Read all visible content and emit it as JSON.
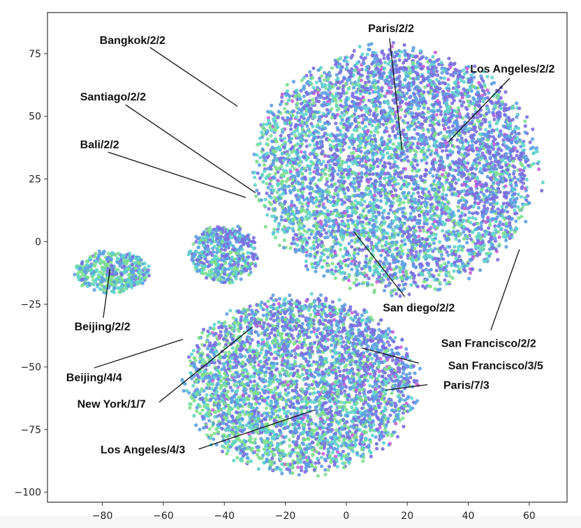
{
  "chart_data": {
    "type": "scatter",
    "title": "",
    "xlabel": "",
    "ylabel": "",
    "xlim": [
      -98,
      72.4
    ],
    "ylim": [
      -104,
      91.4
    ],
    "grid": false,
    "legend": "none",
    "x_ticks": [
      -80,
      -60,
      -40,
      -20,
      0,
      20,
      40,
      60
    ],
    "y_ticks": [
      75,
      50,
      25,
      0,
      -25,
      -50,
      -75,
      -100
    ],
    "x_tick_labels": [
      "−80",
      "−60",
      "−40",
      "−20",
      "0",
      "20",
      "40",
      "60"
    ],
    "y_tick_labels": [
      "75",
      "50",
      "25",
      "0",
      "−25",
      "−50",
      "−75",
      "−100"
    ],
    "palette": [
      "#7a6fe0",
      "#5d9fe3",
      "#5fd4cc",
      "#80df8c",
      "#c563d6"
    ],
    "clusters": [
      {
        "name": "main",
        "center": [
          16,
          29
        ],
        "spread": [
          49,
          51
        ],
        "count": 5200,
        "palette_weights": [
          0.34,
          0.27,
          0.2,
          0.15,
          0.04
        ]
      },
      {
        "name": "left-small",
        "center": [
          -77,
          -12
        ],
        "spread": [
          13,
          9
        ],
        "count": 420,
        "palette_weights": [
          0.12,
          0.25,
          0.28,
          0.35,
          0
        ]
      },
      {
        "name": "mid-small",
        "center": [
          -40,
          -5
        ],
        "spread": [
          12,
          12
        ],
        "count": 500,
        "palette_weights": [
          0.3,
          0.3,
          0.25,
          0.15,
          0
        ]
      },
      {
        "name": "bottom",
        "center": [
          -15,
          -57
        ],
        "spread": [
          40,
          37
        ],
        "count": 3600,
        "palette_weights": [
          0.3,
          0.26,
          0.18,
          0.23,
          0.03
        ]
      }
    ],
    "annotations": [
      {
        "text": "Bangkok/2/2",
        "text_xy": [
          -70.1,
          80.5
        ],
        "line_start": [
          -64.4,
          77.5
        ],
        "target": [
          -35.7,
          54
        ]
      },
      {
        "text": "Paris/2/2",
        "text_xy": [
          14.7,
          85.3
        ],
        "line_start": [
          14.2,
          81.1
        ],
        "target": [
          18.3,
          36.5
        ]
      },
      {
        "text": "Los Angeles/2/2",
        "text_xy": [
          54.5,
          69.1
        ],
        "line_start": [
          53.6,
          65.2
        ],
        "target": [
          33.5,
          39.8
        ]
      },
      {
        "text": "Santiago/2/2",
        "text_xy": [
          -76.5,
          58
        ],
        "line_start": [
          -72.4,
          54.6
        ],
        "target": [
          -29.8,
          19.5
        ]
      },
      {
        "text": "Bali/2/2",
        "text_xy": [
          -80.9,
          39
        ],
        "line_start": [
          -78.1,
          35.7
        ],
        "target": [
          -33,
          17.6
        ]
      },
      {
        "text": "San diego/2/2",
        "text_xy": [
          23.8,
          -26.2
        ],
        "line_start": [
          19.2,
          -22
        ],
        "target": [
          2.5,
          3.9
        ]
      },
      {
        "text": "San Francisco/2/2",
        "text_xy": [
          46.7,
          -40.4
        ],
        "line_start": [
          47.4,
          -35.4
        ],
        "target": [
          56.8,
          -3.1
        ]
      },
      {
        "text": "Beijing/2/2",
        "text_xy": [
          -80,
          -33.7
        ],
        "line_start": [
          -79.7,
          -30.4
        ],
        "target": [
          -77.5,
          -10.9
        ]
      },
      {
        "text": "Beijing/4/4",
        "text_xy": [
          -82.7,
          -54.1
        ],
        "line_start": [
          -82.7,
          -50.4
        ],
        "target": [
          -53.6,
          -39
        ]
      },
      {
        "text": "San Francisco/3/5",
        "text_xy": [
          49,
          -49.3
        ],
        "line_start": [
          23.8,
          -48.5
        ],
        "target": [
          5,
          -42.4
        ]
      },
      {
        "text": "New York/1/7",
        "text_xy": [
          -77,
          -64.6
        ],
        "line_start": [
          -61.4,
          -64.1
        ],
        "target": [
          -30.7,
          -34
        ]
      },
      {
        "text": "Paris/7/3",
        "text_xy": [
          39.4,
          -57.1
        ],
        "line_start": [
          26.6,
          -57.1
        ],
        "target": [
          12.8,
          -59.3
        ]
      },
      {
        "text": "Los Angeles/4/3",
        "text_xy": [
          -66.7,
          -82.8
        ],
        "line_start": [
          -48.4,
          -82.8
        ],
        "target": [
          -10.1,
          -67.1
        ]
      }
    ]
  }
}
